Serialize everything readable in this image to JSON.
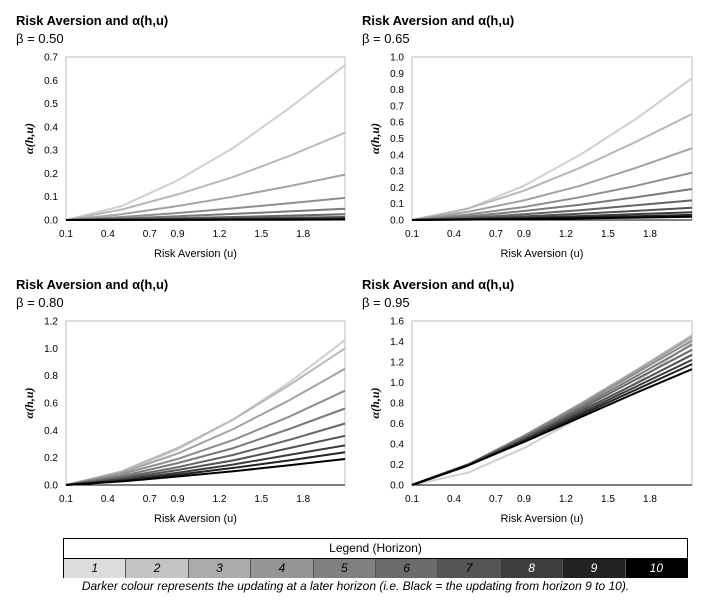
{
  "chart_data": [
    {
      "type": "line",
      "title": "Risk Aversion and α(h,u)",
      "subtitle": "β = 0.50",
      "beta": 0.5,
      "xlabel": "Risk Aversion (u)",
      "ylabel": "α(h,u)",
      "xlim": [
        0.1,
        2.1
      ],
      "ylim": [
        0,
        0.7
      ],
      "xticks": [
        "0.1",
        "0.4",
        "0.7",
        "0.9",
        "1.2",
        "1.5",
        "1.8"
      ],
      "yticks": [
        "0.0",
        "0.1",
        "0.2",
        "0.3",
        "0.4",
        "0.5",
        "0.6",
        "0.7"
      ],
      "series": [
        {
          "name": "1",
          "x": [
            0.1,
            0.5,
            0.9,
            1.3,
            1.7,
            2.1
          ],
          "values": [
            0.0,
            0.06,
            0.17,
            0.31,
            0.48,
            0.665
          ]
        },
        {
          "name": "2",
          "x": [
            0.1,
            0.5,
            0.9,
            1.3,
            1.7,
            2.1
          ],
          "values": [
            0.0,
            0.045,
            0.11,
            0.185,
            0.275,
            0.375
          ]
        },
        {
          "name": "3",
          "x": [
            0.1,
            0.5,
            0.9,
            1.3,
            1.7,
            2.1
          ],
          "values": [
            0.0,
            0.025,
            0.06,
            0.1,
            0.145,
            0.195
          ]
        },
        {
          "name": "4",
          "x": [
            0.1,
            0.5,
            0.9,
            1.3,
            1.7,
            2.1
          ],
          "values": [
            0.0,
            0.013,
            0.03,
            0.05,
            0.072,
            0.095
          ]
        },
        {
          "name": "5",
          "x": [
            0.1,
            0.5,
            0.9,
            1.3,
            1.7,
            2.1
          ],
          "values": [
            0.0,
            0.007,
            0.016,
            0.026,
            0.037,
            0.048
          ]
        },
        {
          "name": "6",
          "x": [
            0.1,
            0.5,
            0.9,
            1.3,
            1.7,
            2.1
          ],
          "values": [
            0.0,
            0.004,
            0.008,
            0.013,
            0.019,
            0.025
          ]
        },
        {
          "name": "7",
          "x": [
            0.1,
            0.5,
            0.9,
            1.3,
            1.7,
            2.1
          ],
          "values": [
            0.0,
            0.002,
            0.004,
            0.007,
            0.01,
            0.013
          ]
        },
        {
          "name": "8",
          "x": [
            0.1,
            0.5,
            0.9,
            1.3,
            1.7,
            2.1
          ],
          "values": [
            0.0,
            0.001,
            0.002,
            0.004,
            0.005,
            0.007
          ]
        },
        {
          "name": "9",
          "x": [
            0.1,
            0.5,
            0.9,
            1.3,
            1.7,
            2.1
          ],
          "values": [
            0.0,
            0.0005,
            0.001,
            0.002,
            0.003,
            0.004
          ]
        },
        {
          "name": "10",
          "x": [
            0.1,
            0.5,
            0.9,
            1.3,
            1.7,
            2.1
          ],
          "values": [
            0.0,
            0.0003,
            0.0006,
            0.001,
            0.0015,
            0.002
          ]
        }
      ]
    },
    {
      "type": "line",
      "title": "Risk Aversion and α(h,u)",
      "subtitle": "β = 0.65",
      "beta": 0.65,
      "xlabel": "Risk Aversion (u)",
      "ylabel": "α(h,u)",
      "xlim": [
        0.1,
        2.1
      ],
      "ylim": [
        0,
        1.0
      ],
      "xticks": [
        "0.1",
        "0.4",
        "0.7",
        "0.9",
        "1.2",
        "1.5",
        "1.8"
      ],
      "yticks": [
        "0.0",
        "0.1",
        "0.2",
        "0.3",
        "0.4",
        "0.5",
        "0.6",
        "0.7",
        "0.8",
        "0.9",
        "1.0"
      ],
      "series": [
        {
          "name": "1",
          "x": [
            0.1,
            0.5,
            0.9,
            1.3,
            1.7,
            2.1
          ],
          "values": [
            0.0,
            0.07,
            0.21,
            0.4,
            0.62,
            0.87
          ]
        },
        {
          "name": "2",
          "x": [
            0.1,
            0.5,
            0.9,
            1.3,
            1.7,
            2.1
          ],
          "values": [
            0.0,
            0.07,
            0.18,
            0.32,
            0.48,
            0.65
          ]
        },
        {
          "name": "3",
          "x": [
            0.1,
            0.5,
            0.9,
            1.3,
            1.7,
            2.1
          ],
          "values": [
            0.0,
            0.05,
            0.12,
            0.21,
            0.32,
            0.44
          ]
        },
        {
          "name": "4",
          "x": [
            0.1,
            0.5,
            0.9,
            1.3,
            1.7,
            2.1
          ],
          "values": [
            0.0,
            0.034,
            0.08,
            0.14,
            0.21,
            0.29
          ]
        },
        {
          "name": "5",
          "x": [
            0.1,
            0.5,
            0.9,
            1.3,
            1.7,
            2.1
          ],
          "values": [
            0.0,
            0.022,
            0.055,
            0.093,
            0.14,
            0.19
          ]
        },
        {
          "name": "6",
          "x": [
            0.1,
            0.5,
            0.9,
            1.3,
            1.7,
            2.1
          ],
          "values": [
            0.0,
            0.014,
            0.035,
            0.06,
            0.09,
            0.12
          ]
        },
        {
          "name": "7",
          "x": [
            0.1,
            0.5,
            0.9,
            1.3,
            1.7,
            2.1
          ],
          "values": [
            0.0,
            0.009,
            0.022,
            0.038,
            0.056,
            0.075
          ]
        },
        {
          "name": "8",
          "x": [
            0.1,
            0.5,
            0.9,
            1.3,
            1.7,
            2.1
          ],
          "values": [
            0.0,
            0.006,
            0.014,
            0.024,
            0.036,
            0.048
          ]
        },
        {
          "name": "9",
          "x": [
            0.1,
            0.5,
            0.9,
            1.3,
            1.7,
            2.1
          ],
          "values": [
            0.0,
            0.004,
            0.009,
            0.016,
            0.023,
            0.031
          ]
        },
        {
          "name": "10",
          "x": [
            0.1,
            0.5,
            0.9,
            1.3,
            1.7,
            2.1
          ],
          "values": [
            0.0,
            0.0025,
            0.006,
            0.01,
            0.015,
            0.02
          ]
        }
      ]
    },
    {
      "type": "line",
      "title": "Risk Aversion and α(h,u)",
      "subtitle": "β = 0.80",
      "beta": 0.8,
      "xlabel": "Risk Aversion (u)",
      "ylabel": "α(h,u)",
      "xlim": [
        0.1,
        2.1
      ],
      "ylim": [
        0,
        1.2
      ],
      "xticks": [
        "0.1",
        "0.4",
        "0.7",
        "0.9",
        "1.2",
        "1.5",
        "1.8"
      ],
      "yticks": [
        "0.0",
        "0.2",
        "0.4",
        "0.6",
        "0.8",
        "1.0",
        "1.2"
      ],
      "series": [
        {
          "name": "1",
          "x": [
            0.1,
            0.5,
            0.9,
            1.3,
            1.7,
            2.1
          ],
          "values": [
            0.0,
            0.09,
            0.26,
            0.48,
            0.75,
            1.06
          ]
        },
        {
          "name": "2",
          "x": [
            0.1,
            0.5,
            0.9,
            1.3,
            1.7,
            2.1
          ],
          "values": [
            0.0,
            0.1,
            0.27,
            0.48,
            0.73,
            1.0
          ]
        },
        {
          "name": "3",
          "x": [
            0.1,
            0.5,
            0.9,
            1.3,
            1.7,
            2.1
          ],
          "values": [
            0.0,
            0.09,
            0.23,
            0.41,
            0.62,
            0.85
          ]
        },
        {
          "name": "4",
          "x": [
            0.1,
            0.5,
            0.9,
            1.3,
            1.7,
            2.1
          ],
          "values": [
            0.0,
            0.08,
            0.19,
            0.33,
            0.5,
            0.69
          ]
        },
        {
          "name": "5",
          "x": [
            0.1,
            0.5,
            0.9,
            1.3,
            1.7,
            2.1
          ],
          "values": [
            0.0,
            0.065,
            0.16,
            0.27,
            0.41,
            0.56
          ]
        },
        {
          "name": "6",
          "x": [
            0.1,
            0.5,
            0.9,
            1.3,
            1.7,
            2.1
          ],
          "values": [
            0.0,
            0.055,
            0.13,
            0.22,
            0.33,
            0.45
          ]
        },
        {
          "name": "7",
          "x": [
            0.1,
            0.5,
            0.9,
            1.3,
            1.7,
            2.1
          ],
          "values": [
            0.0,
            0.045,
            0.11,
            0.18,
            0.27,
            0.36
          ]
        },
        {
          "name": "8",
          "x": [
            0.1,
            0.5,
            0.9,
            1.3,
            1.7,
            2.1
          ],
          "values": [
            0.0,
            0.037,
            0.09,
            0.15,
            0.22,
            0.29
          ]
        },
        {
          "name": "9",
          "x": [
            0.1,
            0.5,
            0.9,
            1.3,
            1.7,
            2.1
          ],
          "values": [
            0.0,
            0.031,
            0.075,
            0.125,
            0.18,
            0.24
          ]
        },
        {
          "name": "10",
          "x": [
            0.1,
            0.5,
            0.9,
            1.3,
            1.7,
            2.1
          ],
          "values": [
            0.0,
            0.026,
            0.062,
            0.1,
            0.145,
            0.19
          ]
        }
      ]
    },
    {
      "type": "line",
      "title": "Risk Aversion and α(h,u)",
      "subtitle": "β = 0.95",
      "beta": 0.95,
      "xlabel": "Risk Aversion (u)",
      "ylabel": "α(h,u)",
      "xlim": [
        0.1,
        2.1
      ],
      "ylim": [
        0,
        1.6
      ],
      "xticks": [
        "0.1",
        "0.4",
        "0.7",
        "0.9",
        "1.2",
        "1.5",
        "1.8"
      ],
      "yticks": [
        "0.0",
        "0.2",
        "0.4",
        "0.6",
        "0.8",
        "1.0",
        "1.2",
        "1.4",
        "1.6"
      ],
      "series": [
        {
          "name": "1",
          "x": [
            0.1,
            0.5,
            0.9,
            1.3,
            1.7,
            2.1
          ],
          "values": [
            0.0,
            0.12,
            0.36,
            0.66,
            1.0,
            1.39
          ]
        },
        {
          "name": "2",
          "x": [
            0.1,
            0.5,
            0.9,
            1.3,
            1.7,
            2.1
          ],
          "values": [
            0.0,
            0.19,
            0.47,
            0.79,
            1.12,
            1.46
          ]
        },
        {
          "name": "3",
          "x": [
            0.1,
            0.5,
            0.9,
            1.3,
            1.7,
            2.1
          ],
          "values": [
            0.0,
            0.2,
            0.48,
            0.79,
            1.11,
            1.44
          ]
        },
        {
          "name": "4",
          "x": [
            0.1,
            0.5,
            0.9,
            1.3,
            1.7,
            2.1
          ],
          "values": [
            0.0,
            0.2,
            0.48,
            0.78,
            1.09,
            1.41
          ]
        },
        {
          "name": "5",
          "x": [
            0.1,
            0.5,
            0.9,
            1.3,
            1.7,
            2.1
          ],
          "values": [
            0.0,
            0.2,
            0.47,
            0.76,
            1.06,
            1.37
          ]
        },
        {
          "name": "6",
          "x": [
            0.1,
            0.5,
            0.9,
            1.3,
            1.7,
            2.1
          ],
          "values": [
            0.0,
            0.2,
            0.46,
            0.74,
            1.03,
            1.32
          ]
        },
        {
          "name": "7",
          "x": [
            0.1,
            0.5,
            0.9,
            1.3,
            1.7,
            2.1
          ],
          "values": [
            0.0,
            0.2,
            0.45,
            0.72,
            0.99,
            1.27
          ]
        },
        {
          "name": "8",
          "x": [
            0.1,
            0.5,
            0.9,
            1.3,
            1.7,
            2.1
          ],
          "values": [
            0.0,
            0.19,
            0.44,
            0.7,
            0.96,
            1.22
          ]
        },
        {
          "name": "9",
          "x": [
            0.1,
            0.5,
            0.9,
            1.3,
            1.7,
            2.1
          ],
          "values": [
            0.0,
            0.19,
            0.43,
            0.68,
            0.93,
            1.18
          ]
        },
        {
          "name": "10",
          "x": [
            0.1,
            0.5,
            0.9,
            1.3,
            1.7,
            2.1
          ],
          "values": [
            0.0,
            0.19,
            0.42,
            0.66,
            0.9,
            1.13
          ]
        }
      ]
    }
  ],
  "series_colors": [
    "#cfcfcf",
    "#b8b8b8",
    "#a3a3a3",
    "#8e8e8e",
    "#7a7a7a",
    "#666666",
    "#525252",
    "#3c3c3c",
    "#232323",
    "#000000"
  ],
  "legend": {
    "title": "Legend (Horizon)",
    "items": [
      {
        "label": "1",
        "color": "#dcdcdc"
      },
      {
        "label": "2",
        "color": "#c3c3c3"
      },
      {
        "label": "3",
        "color": "#ababab"
      },
      {
        "label": "4",
        "color": "#959595"
      },
      {
        "label": "5",
        "color": "#808080"
      },
      {
        "label": "6",
        "color": "#6b6b6b"
      },
      {
        "label": "7",
        "color": "#555555"
      },
      {
        "label": "8",
        "color": "#3d3d3d"
      },
      {
        "label": "9",
        "color": "#222222"
      },
      {
        "label": "10",
        "color": "#000000"
      }
    ]
  },
  "note": "Darker colour represents the updating at a later horizon (i.e. Black = the updating from horizon 9 to 10)."
}
